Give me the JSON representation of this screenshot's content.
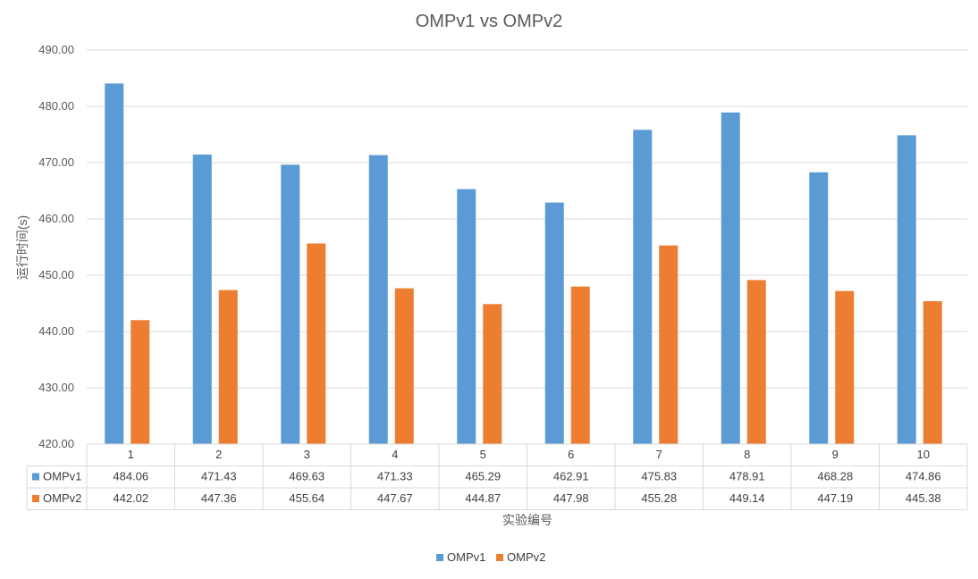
{
  "chart_data": {
    "type": "bar",
    "title": "OMPv1 vs OMPv2",
    "xlabel": "实验编号",
    "ylabel": "运行时间(s)",
    "ylim": [
      420,
      490
    ],
    "yticks": [
      "420.00",
      "430.00",
      "440.00",
      "450.00",
      "460.00",
      "470.00",
      "480.00",
      "490.00"
    ],
    "categories": [
      "1",
      "2",
      "3",
      "4",
      "5",
      "6",
      "7",
      "8",
      "9",
      "10"
    ],
    "series": [
      {
        "name": "OMPv1",
        "color": "#5B9BD5",
        "values": [
          484.06,
          471.43,
          469.63,
          471.33,
          465.29,
          462.91,
          475.83,
          478.91,
          468.28,
          474.86
        ],
        "labels": [
          "484.06",
          "471.43",
          "469.63",
          "471.33",
          "465.29",
          "462.91",
          "475.83",
          "478.91",
          "468.28",
          "474.86"
        ]
      },
      {
        "name": "OMPv2",
        "color": "#ED7D31",
        "values": [
          442.02,
          447.36,
          455.64,
          447.67,
          444.87,
          447.98,
          455.28,
          449.14,
          447.19,
          445.38
        ],
        "labels": [
          "442.02",
          "447.36",
          "455.64",
          "447.67",
          "444.87",
          "447.98",
          "455.28",
          "449.14",
          "447.19",
          "445.38"
        ]
      }
    ],
    "grid": true,
    "legend_position": "bottom",
    "data_table": true
  }
}
